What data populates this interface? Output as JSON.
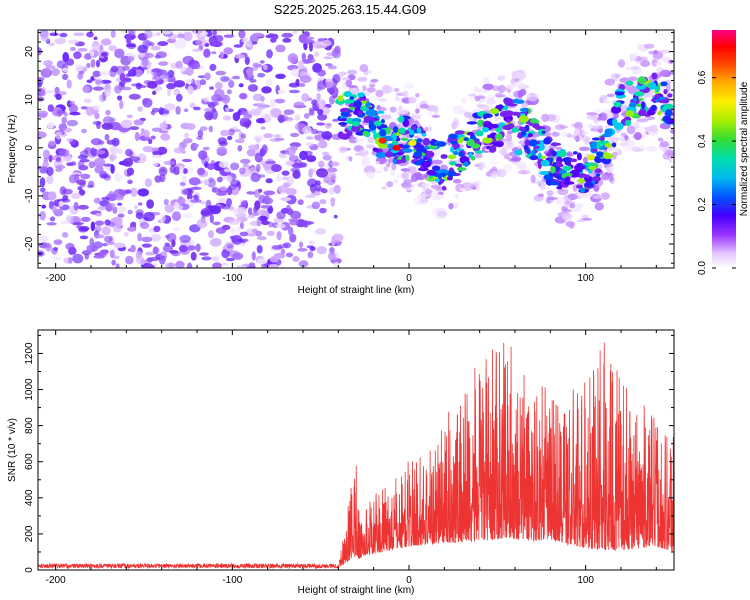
{
  "figure": {
    "title": "S225.2025.263.15.44.G09"
  },
  "chart_data": [
    {
      "type": "heatmap",
      "title": "S225.2025.263.15.44.G09",
      "xlabel": "Height of straight line (km)",
      "ylabel": "Frequency (Hz)",
      "xlim": [
        -210,
        150
      ],
      "ylim": [
        -25,
        24.5
      ],
      "x_ticks": [
        -200,
        -100,
        0,
        100
      ],
      "y_ticks": [
        -20,
        -10,
        0,
        10,
        20
      ],
      "noise_region_x": [
        -210,
        -40
      ],
      "signal_ridge": {
        "x": [
          -40,
          -30,
          -20,
          -10,
          0,
          10,
          20,
          30,
          40,
          50,
          60,
          70,
          80,
          90,
          100,
          110,
          120,
          130,
          140,
          150
        ],
        "y": [
          6,
          8,
          4,
          1,
          2,
          -2,
          -4,
          0,
          3,
          4,
          8,
          2,
          -3,
          -5,
          -6,
          0,
          8,
          10,
          11,
          7
        ]
      },
      "colorbar": {
        "label": "Normalized spectral amplitude",
        "range": [
          0.0,
          0.75
        ],
        "ticks": [
          0.0,
          0.2,
          0.4,
          0.6
        ],
        "tick_labels": [
          "0.0",
          "0.2",
          "0.4",
          "0.6"
        ]
      }
    },
    {
      "type": "line",
      "xlabel": "Height of straight line (km)",
      "ylabel": "SNR (10 * v/v)",
      "xlim": [
        -210,
        150
      ],
      "ylim": [
        0,
        1330
      ],
      "x_ticks": [
        -200,
        -100,
        0,
        100
      ],
      "y_ticks": [
        0,
        200,
        400,
        600,
        800,
        1000,
        1200
      ],
      "series": [
        {
          "name": "SNR",
          "color": "#ee3333",
          "envelope_x": [
            -210,
            -40,
            -30,
            -28,
            -25,
            -20,
            -10,
            0,
            10,
            20,
            30,
            40,
            50,
            55,
            60,
            70,
            80,
            90,
            100,
            110,
            120,
            130,
            140,
            150
          ],
          "envelope_low": [
            10,
            10,
            80,
            60,
            80,
            90,
            110,
            130,
            140,
            150,
            150,
            160,
            170,
            180,
            170,
            160,
            170,
            140,
            120,
            110,
            110,
            120,
            130,
            100
          ],
          "envelope_high": [
            35,
            35,
            650,
            280,
            350,
            420,
            480,
            620,
            680,
            820,
            1050,
            1150,
            1250,
            1320,
            1200,
            1050,
            1000,
            980,
            1100,
            1300,
            1050,
            950,
            850,
            820
          ]
        }
      ]
    }
  ]
}
